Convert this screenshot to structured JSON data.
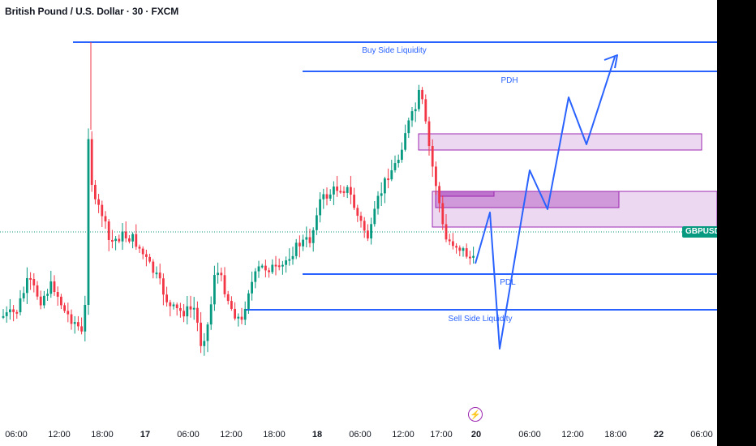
{
  "header": {
    "title": "British Pound / U.S. Dollar · 30 · FXCM"
  },
  "symbol_tag": "GBPUSD",
  "colors": {
    "up": "#089981",
    "down": "#f23645",
    "levels": "#2962ff",
    "zones": "#9c27b0",
    "last_price_line": "#089981"
  },
  "icons": {
    "event": "lightning-bolt-icon"
  },
  "chart_data": {
    "type": "candlestick",
    "x_ticks": [
      {
        "label": "06:00",
        "bold": false
      },
      {
        "label": "12:00",
        "bold": false
      },
      {
        "label": "18:00",
        "bold": false
      },
      {
        "label": "17",
        "bold": true
      },
      {
        "label": "06:00",
        "bold": false
      },
      {
        "label": "12:00",
        "bold": false
      },
      {
        "label": "18:00",
        "bold": false
      },
      {
        "label": "18",
        "bold": true
      },
      {
        "label": "06:00",
        "bold": false
      },
      {
        "label": "12:00",
        "bold": false
      },
      {
        "label": "17:00",
        "bold": false
      },
      {
        "label": "20",
        "bold": true
      },
      {
        "label": "06:00",
        "bold": false
      },
      {
        "label": "12:00",
        "bold": false
      },
      {
        "label": "18:00",
        "bold": false
      },
      {
        "label": "22",
        "bold": true
      },
      {
        "label": "06:00",
        "bold": false
      }
    ],
    "levels": [
      {
        "label": "Buy Side Liquidity",
        "y": 52
      },
      {
        "label": "PDH",
        "y": 88
      },
      {
        "label": "PDL",
        "y": 338
      },
      {
        "label": "Sell Side Liquidity",
        "y": 382
      }
    ],
    "last_price_y": 286
  }
}
